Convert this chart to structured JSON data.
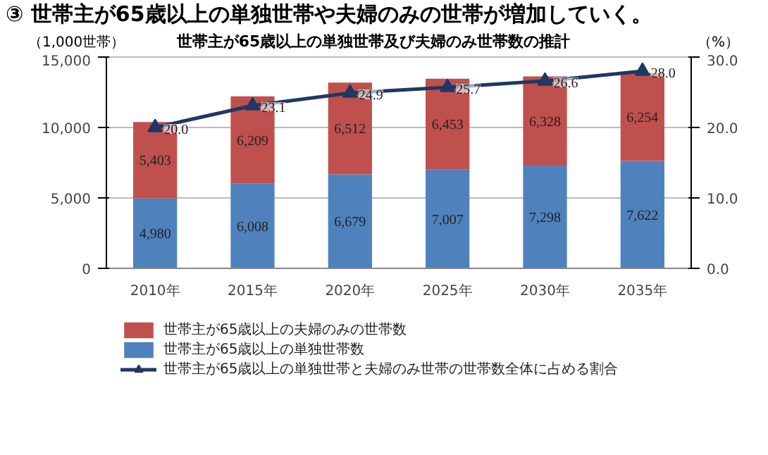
{
  "chart_data": {
    "type": "bar",
    "stacked": true,
    "title": "③ 世帯主が65歳以上の単独世帯や夫婦のみの世帯が増加していく。",
    "subtitle": "世帯主が65歳以上の単独世帯及び夫婦のみ世帯数の推計",
    "ylabel": "（1,000世帯）",
    "y2label": "（%）",
    "categories": [
      "2010年",
      "2015年",
      "2020年",
      "2025年",
      "2030年",
      "2035年"
    ],
    "series": [
      {
        "name": "世帯主が65歳以上の単独世帯数",
        "color": "#4f81bd",
        "values": [
          4980,
          6008,
          6679,
          7007,
          7298,
          7622
        ],
        "value_labels": [
          "4,980",
          "6,008",
          "6,679",
          "7,007",
          "7,298",
          "7,622"
        ]
      },
      {
        "name": "世帯主が65歳以上の夫婦のみの世帯数",
        "color": "#c0504d",
        "values": [
          5403,
          6209,
          6512,
          6453,
          6328,
          6254
        ],
        "value_labels": [
          "5,403",
          "6,209",
          "6,512",
          "6,453",
          "6,328",
          "6,254"
        ]
      },
      {
        "name": "世帯主が65歳以上の単独世帯と夫婦のみ世帯の世帯数全体に占める割合",
        "type": "line",
        "axis": "y2",
        "color": "#1f3864",
        "marker": "triangle",
        "values": [
          20.0,
          23.1,
          24.9,
          25.7,
          26.6,
          28.0
        ],
        "value_labels": [
          "20.0",
          "23.1",
          "24.9",
          "25.7",
          "26.6",
          "28.0"
        ]
      }
    ],
    "ylim": [
      0,
      15000
    ],
    "yticks": [
      {
        "value": 0,
        "label": "0"
      },
      {
        "value": 5000,
        "label": "5,000"
      },
      {
        "value": 10000,
        "label": "10,000"
      },
      {
        "value": 15000,
        "label": "15,000"
      }
    ],
    "y2lim": [
      0,
      30
    ],
    "y2ticks": [
      {
        "value": 0,
        "label": "0.0"
      },
      {
        "value": 10,
        "label": "10.0"
      },
      {
        "value": 20,
        "label": "20.0"
      },
      {
        "value": 30,
        "label": "30.0"
      }
    ],
    "grid": "y",
    "legend": "bottom"
  }
}
